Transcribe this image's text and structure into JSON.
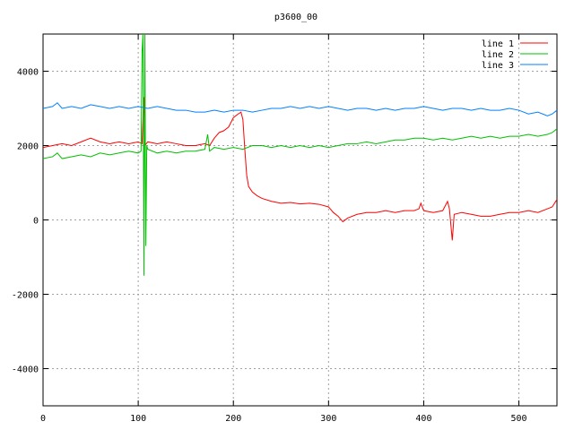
{
  "chart_data": {
    "type": "line",
    "title": "p3600_00",
    "xlabel": "",
    "ylabel": "",
    "xlim": [
      0,
      540
    ],
    "ylim": [
      -5000,
      5000
    ],
    "xticks": [
      0,
      100,
      200,
      300,
      400,
      500
    ],
    "yticks": [
      -4000,
      -2000,
      0,
      2000,
      4000
    ],
    "grid": true,
    "legend_position": "top-right",
    "series": [
      {
        "name": "line 1",
        "color": "#ff0000",
        "points": [
          [
            0,
            1950
          ],
          [
            10,
            2000
          ],
          [
            20,
            2050
          ],
          [
            30,
            2000
          ],
          [
            40,
            2100
          ],
          [
            50,
            2200
          ],
          [
            60,
            2100
          ],
          [
            70,
            2050
          ],
          [
            80,
            2100
          ],
          [
            90,
            2050
          ],
          [
            100,
            2100
          ],
          [
            104,
            2050
          ],
          [
            106,
            3300
          ],
          [
            107,
            2000
          ],
          [
            110,
            2100
          ],
          [
            120,
            2050
          ],
          [
            130,
            2100
          ],
          [
            140,
            2050
          ],
          [
            150,
            2000
          ],
          [
            160,
            2000
          ],
          [
            170,
            2050
          ],
          [
            175,
            2000
          ],
          [
            180,
            2200
          ],
          [
            185,
            2350
          ],
          [
            190,
            2400
          ],
          [
            195,
            2500
          ],
          [
            200,
            2750
          ],
          [
            205,
            2850
          ],
          [
            208,
            2900
          ],
          [
            210,
            2700
          ],
          [
            212,
            1900
          ],
          [
            214,
            1200
          ],
          [
            216,
            900
          ],
          [
            220,
            750
          ],
          [
            225,
            650
          ],
          [
            230,
            580
          ],
          [
            240,
            500
          ],
          [
            250,
            450
          ],
          [
            260,
            470
          ],
          [
            270,
            430
          ],
          [
            280,
            450
          ],
          [
            290,
            420
          ],
          [
            300,
            350
          ],
          [
            305,
            200
          ],
          [
            310,
            100
          ],
          [
            315,
            -50
          ],
          [
            320,
            50
          ],
          [
            330,
            150
          ],
          [
            340,
            200
          ],
          [
            350,
            200
          ],
          [
            360,
            250
          ],
          [
            370,
            200
          ],
          [
            380,
            250
          ],
          [
            390,
            250
          ],
          [
            395,
            300
          ],
          [
            397,
            450
          ],
          [
            400,
            250
          ],
          [
            410,
            200
          ],
          [
            420,
            250
          ],
          [
            425,
            500
          ],
          [
            427,
            300
          ],
          [
            430,
            -550
          ],
          [
            432,
            150
          ],
          [
            440,
            200
          ],
          [
            450,
            150
          ],
          [
            460,
            100
          ],
          [
            470,
            100
          ],
          [
            480,
            150
          ],
          [
            490,
            200
          ],
          [
            500,
            200
          ],
          [
            510,
            250
          ],
          [
            520,
            200
          ],
          [
            530,
            300
          ],
          [
            535,
            350
          ],
          [
            540,
            550
          ]
        ]
      },
      {
        "name": "line 2",
        "color": "#00c000",
        "points": [
          [
            0,
            1650
          ],
          [
            10,
            1700
          ],
          [
            15,
            1800
          ],
          [
            20,
            1650
          ],
          [
            30,
            1700
          ],
          [
            40,
            1750
          ],
          [
            50,
            1700
          ],
          [
            60,
            1800
          ],
          [
            70,
            1750
          ],
          [
            80,
            1800
          ],
          [
            90,
            1850
          ],
          [
            100,
            1800
          ],
          [
            103,
            1850
          ],
          [
            104,
            4500
          ],
          [
            105,
            5000
          ],
          [
            106,
            -1500
          ],
          [
            107,
            5000
          ],
          [
            108,
            -700
          ],
          [
            109,
            2000
          ],
          [
            110,
            1900
          ],
          [
            120,
            1800
          ],
          [
            130,
            1850
          ],
          [
            140,
            1800
          ],
          [
            150,
            1850
          ],
          [
            160,
            1850
          ],
          [
            170,
            1900
          ],
          [
            173,
            2300
          ],
          [
            175,
            1850
          ],
          [
            180,
            1950
          ],
          [
            190,
            1900
          ],
          [
            200,
            1950
          ],
          [
            210,
            1900
          ],
          [
            220,
            2000
          ],
          [
            230,
            2000
          ],
          [
            240,
            1950
          ],
          [
            250,
            2000
          ],
          [
            260,
            1950
          ],
          [
            270,
            2000
          ],
          [
            280,
            1950
          ],
          [
            290,
            2000
          ],
          [
            300,
            1950
          ],
          [
            310,
            2000
          ],
          [
            320,
            2050
          ],
          [
            330,
            2050
          ],
          [
            340,
            2100
          ],
          [
            350,
            2050
          ],
          [
            360,
            2100
          ],
          [
            370,
            2150
          ],
          [
            380,
            2150
          ],
          [
            390,
            2200
          ],
          [
            400,
            2200
          ],
          [
            410,
            2150
          ],
          [
            420,
            2200
          ],
          [
            430,
            2150
          ],
          [
            440,
            2200
          ],
          [
            450,
            2250
          ],
          [
            460,
            2200
          ],
          [
            470,
            2250
          ],
          [
            480,
            2200
          ],
          [
            490,
            2250
          ],
          [
            500,
            2250
          ],
          [
            510,
            2300
          ],
          [
            520,
            2250
          ],
          [
            530,
            2300
          ],
          [
            535,
            2350
          ],
          [
            540,
            2450
          ]
        ]
      },
      {
        "name": "line 3",
        "color": "#0080ff",
        "points": [
          [
            0,
            3000
          ],
          [
            10,
            3050
          ],
          [
            15,
            3150
          ],
          [
            20,
            3000
          ],
          [
            30,
            3050
          ],
          [
            40,
            3000
          ],
          [
            50,
            3100
          ],
          [
            60,
            3050
          ],
          [
            70,
            3000
          ],
          [
            80,
            3050
          ],
          [
            90,
            3000
          ],
          [
            100,
            3050
          ],
          [
            110,
            3000
          ],
          [
            120,
            3050
          ],
          [
            130,
            3000
          ],
          [
            140,
            2950
          ],
          [
            150,
            2950
          ],
          [
            160,
            2900
          ],
          [
            170,
            2900
          ],
          [
            180,
            2950
          ],
          [
            190,
            2900
          ],
          [
            200,
            2950
          ],
          [
            210,
            2950
          ],
          [
            220,
            2900
          ],
          [
            230,
            2950
          ],
          [
            240,
            3000
          ],
          [
            250,
            3000
          ],
          [
            260,
            3050
          ],
          [
            270,
            3000
          ],
          [
            280,
            3050
          ],
          [
            290,
            3000
          ],
          [
            300,
            3050
          ],
          [
            310,
            3000
          ],
          [
            320,
            2950
          ],
          [
            330,
            3000
          ],
          [
            340,
            3000
          ],
          [
            350,
            2950
          ],
          [
            360,
            3000
          ],
          [
            370,
            2950
          ],
          [
            380,
            3000
          ],
          [
            390,
            3000
          ],
          [
            400,
            3050
          ],
          [
            410,
            3000
          ],
          [
            420,
            2950
          ],
          [
            430,
            3000
          ],
          [
            440,
            3000
          ],
          [
            450,
            2950
          ],
          [
            460,
            3000
          ],
          [
            470,
            2950
          ],
          [
            480,
            2950
          ],
          [
            490,
            3000
          ],
          [
            500,
            2950
          ],
          [
            510,
            2850
          ],
          [
            520,
            2900
          ],
          [
            530,
            2800
          ],
          [
            535,
            2850
          ],
          [
            540,
            2950
          ]
        ]
      }
    ]
  }
}
